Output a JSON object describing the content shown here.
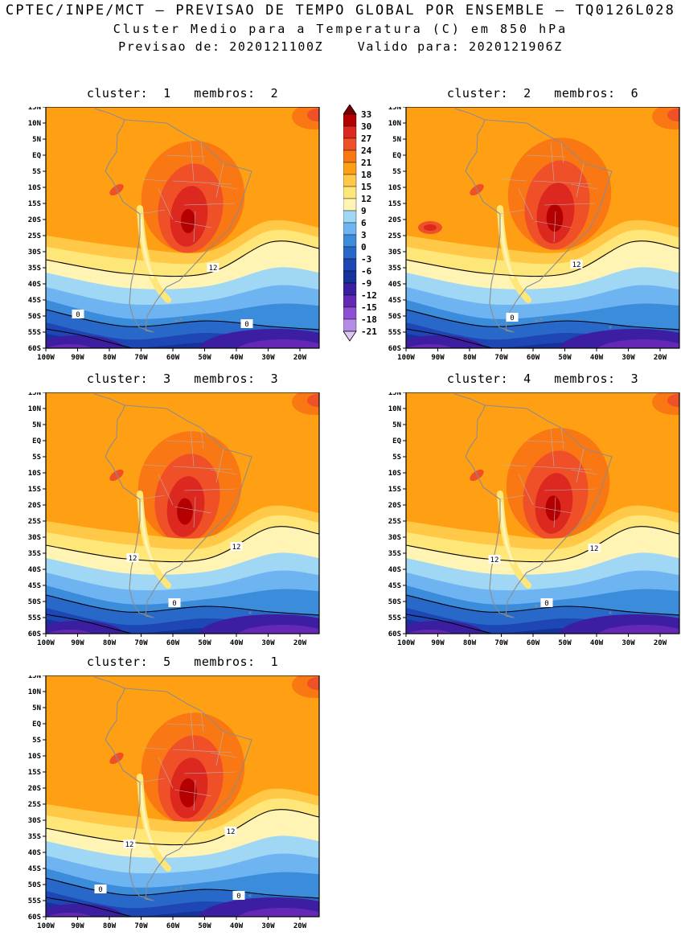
{
  "header": {
    "line1": "CPTEC/INPE/MCT — PREVISAO DE TEMPO GLOBAL POR ENSEMBLE — TQ0126L028",
    "line2": "Cluster Medio para a Temperatura (C) em 850 hPa",
    "line3": "Previsao de: 2020121100Z    Valido para: 2020121906Z"
  },
  "panels": [
    {
      "label": "cluster:  1   membros:  2",
      "cluster": 1,
      "membros": 2
    },
    {
      "label": "cluster:  2   membros:  6",
      "cluster": 2,
      "membros": 6
    },
    {
      "label": "cluster:  3   membros:  3",
      "cluster": 3,
      "membros": 3
    },
    {
      "label": "cluster:  4   membros:  3",
      "cluster": 4,
      "membros": 3
    },
    {
      "label": "cluster:  5   membros:  1",
      "cluster": 5,
      "membros": 1
    }
  ],
  "axes": {
    "lat_labels": [
      "15N",
      "10N",
      "5N",
      "EQ",
      "5S",
      "10S",
      "15S",
      "20S",
      "25S",
      "30S",
      "35S",
      "40S",
      "45S",
      "50S",
      "55S",
      "60S"
    ],
    "lon_labels": [
      "100W",
      "90W",
      "80W",
      "70W",
      "60W",
      "50W",
      "40W",
      "30W",
      "20W"
    ]
  },
  "colorbar": {
    "levels": [
      33,
      30,
      27,
      24,
      21,
      18,
      15,
      12,
      9,
      6,
      3,
      0,
      -3,
      -6,
      -9,
      -12,
      -15,
      -18,
      -21
    ],
    "colors": [
      "#7a0000",
      "#b40000",
      "#dc281e",
      "#f05028",
      "#fa7814",
      "#ffa014",
      "#ffc846",
      "#ffe678",
      "#fff4b4",
      "#a0d7f5",
      "#6eb4f0",
      "#3c8cdc",
      "#2868c8",
      "#1e46b4",
      "#16329b",
      "#3c1ea0",
      "#6428b4",
      "#8c50d2",
      "#b48ce6",
      "#dcc8f5"
    ]
  },
  "contour_labels": {
    "warm": "12",
    "cold": "0"
  },
  "map_colors": {
    "coastline": "#8c8c8c",
    "state_borders": "#b4b4b4",
    "contour_line": "#000000"
  },
  "chart_data": {
    "type": "heatmap",
    "subtype": "filled contour map, 5-panel ensemble cluster means over South America",
    "title": "Cluster Medio para a Temperatura (C) em 850 hPa",
    "source": "CPTEC/INPE/MCT — PREVISAO DE TEMPO GLOBAL POR ENSEMBLE — TQ0126L028",
    "init_time": "2020121100Z",
    "valid_time": "2020121906Z",
    "panels": [
      {
        "cluster": 1,
        "membros": 2
      },
      {
        "cluster": 2,
        "membros": 6
      },
      {
        "cluster": 3,
        "membros": 3
      },
      {
        "cluster": 4,
        "membros": 3
      },
      {
        "cluster": 5,
        "membros": 1
      }
    ],
    "x": {
      "label": "longitude",
      "ticks": [
        "100W",
        "90W",
        "80W",
        "70W",
        "60W",
        "50W",
        "40W",
        "30W",
        "20W"
      ]
    },
    "y": {
      "label": "latitude",
      "ticks": [
        "15N",
        "10N",
        "5N",
        "EQ",
        "5S",
        "10S",
        "15S",
        "20S",
        "25S",
        "30S",
        "35S",
        "40S",
        "45S",
        "50S",
        "55S",
        "60S"
      ]
    },
    "contour_levels_c": [
      33,
      30,
      27,
      24,
      21,
      18,
      15,
      12,
      9,
      6,
      3,
      0,
      -3,
      -6,
      -9,
      -12,
      -15,
      -18,
      -21
    ],
    "labeled_isotherms_c": [
      12,
      0
    ],
    "field_summary": {
      "warm_core": "24-30 C core over central Brazil (about 55W, 10-20S) in every cluster",
      "background": "18-21 C over most tropical South America and adjacent oceans",
      "isotherm_12c": "near 28-33S, bulging north over the Atlantic around 25-30W",
      "isotherm_0c": "near 45-52S across Patagonia and adjacent oceans",
      "coldest": "below -9 C (purple shades) south of about 55S",
      "andes": "narrow cool 9-15 C ribbon along the Andes from about 15S to 40S"
    },
    "legend_position": "between top two panels, vertical color bar with end arrows"
  }
}
